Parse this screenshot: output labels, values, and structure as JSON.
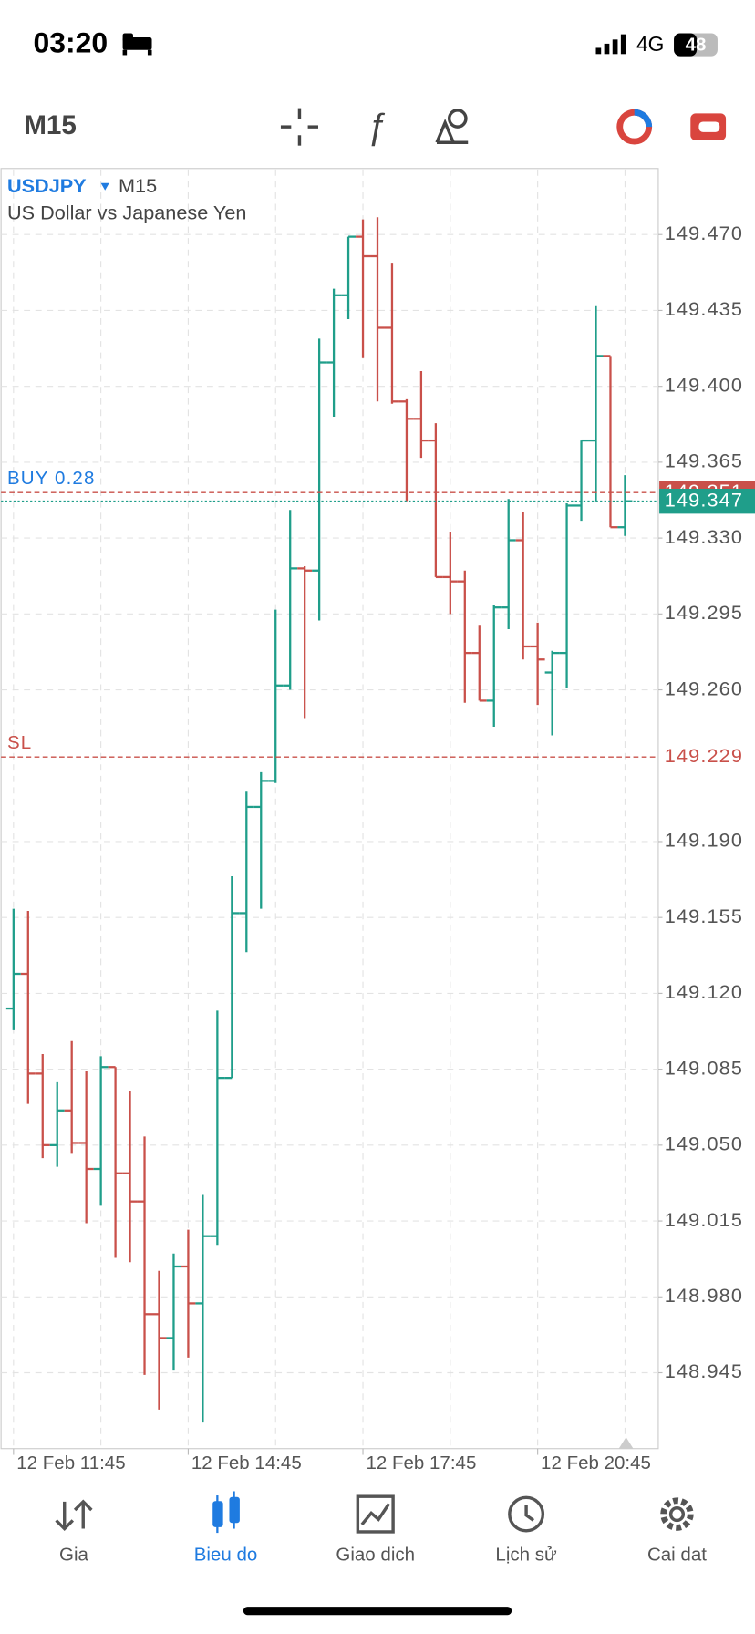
{
  "status_bar": {
    "time": "03:20",
    "network": "4G",
    "battery": "48"
  },
  "toolbar": {
    "timeframe": "M15"
  },
  "chart_data": {
    "type": "ohlc",
    "symbol": "USDJPY",
    "timeframe": "M15",
    "subtitle": "US Dollar vs Japanese Yen",
    "categories": [
      "12 Feb 11:45",
      null,
      null,
      null,
      null,
      null,
      null,
      null,
      null,
      null,
      null,
      null,
      "12 Feb 14:45",
      null,
      null,
      null,
      null,
      null,
      null,
      null,
      null,
      null,
      null,
      null,
      "12 Feb 17:45",
      null,
      null,
      null,
      null,
      null,
      null,
      null,
      null,
      null,
      null,
      null,
      "12 Feb 20:45",
      null,
      null,
      null,
      null,
      null,
      null
    ],
    "open": [
      149.113,
      149.129,
      149.083,
      149.05,
      149.066,
      149.051,
      149.039,
      149.086,
      149.037,
      149.024,
      148.972,
      148.961,
      148.994,
      148.977,
      149.008,
      149.081,
      149.157,
      149.206,
      149.218,
      149.262,
      149.316,
      149.315,
      149.411,
      149.442,
      149.469,
      149.46,
      149.427,
      149.393,
      149.385,
      149.375,
      149.312,
      149.31,
      149.277,
      149.255,
      149.298,
      149.329,
      149.28,
      149.268,
      149.277,
      149.345,
      149.375,
      149.414,
      149.335
    ],
    "high": [
      149.159,
      149.158,
      149.092,
      149.079,
      149.098,
      149.084,
      149.091,
      149.086,
      149.075,
      149.054,
      148.992,
      149.0,
      149.011,
      149.027,
      149.112,
      149.174,
      149.213,
      149.222,
      149.297,
      149.343,
      149.317,
      149.422,
      149.445,
      149.469,
      149.477,
      149.478,
      149.457,
      149.394,
      149.407,
      149.383,
      149.333,
      149.315,
      149.29,
      149.299,
      149.348,
      149.342,
      149.291,
      149.278,
      149.346,
      149.375,
      149.437,
      149.414,
      149.359
    ],
    "low": [
      149.103,
      149.069,
      149.044,
      149.04,
      149.046,
      149.014,
      149.022,
      148.998,
      148.996,
      148.944,
      148.928,
      148.946,
      148.952,
      148.922,
      149.004,
      149.081,
      149.139,
      149.159,
      149.217,
      149.26,
      149.247,
      149.292,
      149.386,
      149.431,
      149.413,
      149.393,
      149.392,
      149.347,
      149.367,
      149.312,
      149.295,
      149.254,
      149.255,
      149.243,
      149.288,
      149.274,
      149.253,
      149.239,
      149.261,
      149.338,
      149.347,
      149.335,
      149.331
    ],
    "close": [
      149.129,
      149.083,
      149.05,
      149.066,
      149.051,
      149.039,
      149.086,
      149.037,
      149.024,
      148.972,
      148.961,
      148.994,
      148.977,
      149.008,
      149.081,
      149.157,
      149.206,
      149.218,
      149.262,
      149.316,
      149.315,
      149.411,
      149.442,
      149.469,
      149.46,
      149.427,
      149.393,
      149.385,
      149.375,
      149.312,
      149.31,
      149.277,
      149.255,
      149.298,
      149.329,
      149.28,
      149.274,
      149.277,
      149.345,
      149.375,
      149.414,
      149.335,
      149.347
    ],
    "up_color": "#1f9e8a",
    "down_color": "#c9504a",
    "ylim": [
      148.91,
      149.5
    ],
    "yticks": [
      {
        "value": 149.47,
        "label": "149.470"
      },
      149.435,
      {
        "value": 149.4,
        "label": "149.400"
      },
      149.365,
      {
        "value": 149.33,
        "label": "149.330"
      },
      149.295,
      {
        "value": 149.26,
        "label": "149.260"
      },
      {
        "value": 149.19,
        "label": "149.190"
      },
      149.155,
      {
        "value": 149.12,
        "label": "149.120"
      },
      149.085,
      {
        "value": 149.05,
        "label": "149.050"
      },
      149.015,
      {
        "value": 148.98,
        "label": "148.980"
      },
      148.945
    ],
    "grid": true,
    "orders": [
      {
        "label": "BUY 0.28",
        "value": 149.351,
        "label_color": "#1f7be0",
        "line_color": "#c9504a",
        "price_box": true
      },
      {
        "label": "SL",
        "value": 149.229,
        "label_color": "#c9504a",
        "line_color": "#c9504a",
        "price_box": false
      }
    ],
    "last_price": 149.347,
    "last_price_color": "#1f9e8a"
  },
  "nav": {
    "items": [
      "Gia",
      "Bieu do",
      "Giao dich",
      "Lịch sử",
      "Cai dat"
    ],
    "active": 1,
    "active_color": "#1f7be0",
    "color": "#555555"
  }
}
